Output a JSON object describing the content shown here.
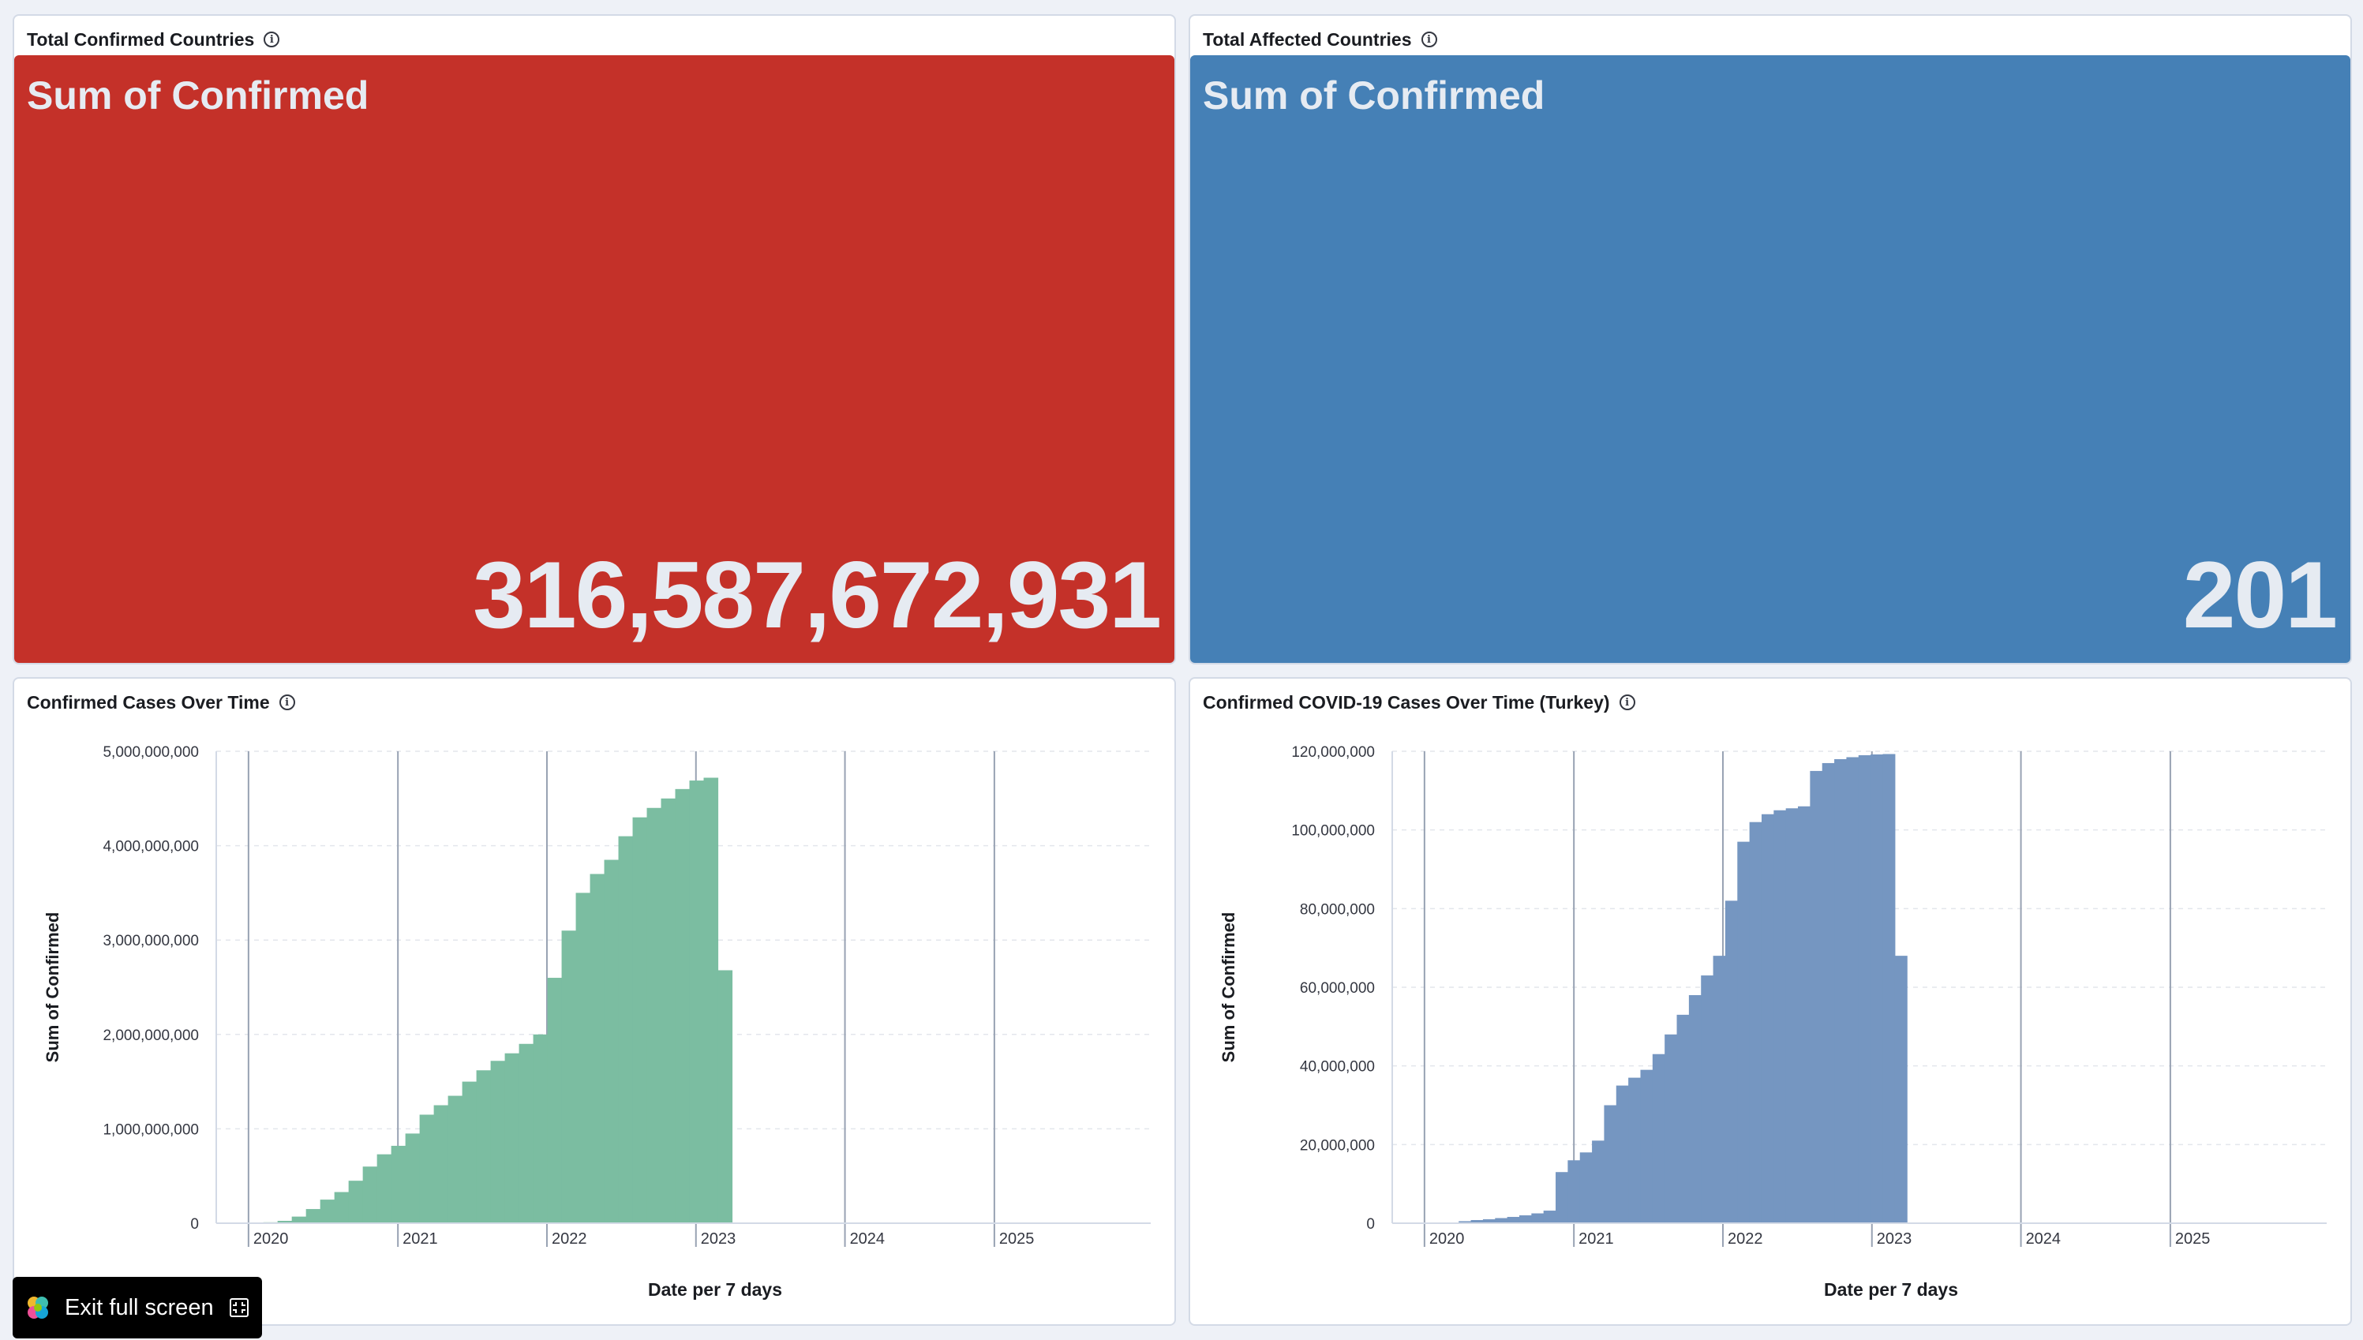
{
  "panels": {
    "p1": {
      "title": "Total Confirmed Countries",
      "label": "Sum of Confirmed",
      "value": "316,587,672,931",
      "color": "#c43129"
    },
    "p2": {
      "title": "Total Affected Countries",
      "label": "Sum of Confirmed",
      "value": "201",
      "color": "#4580b6"
    },
    "p3": {
      "title": "Confirmed Cases Over Time"
    },
    "p4": {
      "title": "Confirmed COVID-19 Cases Over Time (Turkey)"
    }
  },
  "exit_button": {
    "label": "Exit full screen"
  },
  "chart_data": [
    {
      "type": "bar",
      "title": "Confirmed Cases Over Time",
      "xlabel": "Date per 7 days",
      "ylabel": "Sum of Confirmed",
      "color": "#7bbda1",
      "x_ticks": [
        "2020",
        "2021",
        "2022",
        "2023",
        "2024",
        "2025"
      ],
      "y_ticks": [
        "0",
        "1,000,000,000",
        "2,000,000,000",
        "3,000,000,000",
        "4,000,000,000",
        "5,000,000,000"
      ],
      "ylim": [
        0,
        5000000000
      ],
      "xlim": [
        "2019-10-14",
        "2026-01-19"
      ],
      "series": [
        {
          "x_start": "2020-01-20",
          "x_end": "2023-03-13",
          "x_interval": "7 days",
          "values": [
            0,
            10000000,
            25000000,
            70000000,
            150000000,
            250000000,
            330000000,
            450000000,
            600000000,
            730000000,
            820000000,
            950000000,
            1150000000,
            1250000000,
            1350000000,
            1500000000,
            1620000000,
            1720000000,
            1800000000,
            1900000000,
            2000000000,
            2600000000,
            3100000000,
            3500000000,
            3700000000,
            3850000000,
            4100000000,
            4300000000,
            4400000000,
            4500000000,
            4600000000,
            4690000000,
            4720000000,
            2680000000
          ]
        }
      ]
    },
    {
      "type": "bar",
      "title": "Confirmed COVID-19 Cases Over Time (Turkey)",
      "xlabel": "Date per 7 days",
      "ylabel": "Sum of Confirmed",
      "color": "#7596c1",
      "x_ticks": [
        "2020",
        "2021",
        "2022",
        "2023",
        "2024",
        "2025"
      ],
      "y_ticks": [
        "0",
        "20,000,000",
        "40,000,000",
        "60,000,000",
        "80,000,000",
        "100,000,000",
        "120,000,000"
      ],
      "ylim": [
        0,
        120000000
      ],
      "xlim": [
        "2019-10-14",
        "2026-01-19"
      ],
      "series": [
        {
          "x_start": "2020-03-10",
          "x_end": "2023-03-13",
          "x_interval": "7 days",
          "values": [
            0,
            500000,
            800000,
            1000000,
            1300000,
            1600000,
            2000000,
            2500000,
            3200000,
            13000000,
            16000000,
            18000000,
            21000000,
            30000000,
            35000000,
            37000000,
            39000000,
            43000000,
            48000000,
            53000000,
            58000000,
            63000000,
            68000000,
            82000000,
            97000000,
            102000000,
            104000000,
            105000000,
            105500000,
            106000000,
            115000000,
            117000000,
            118000000,
            118500000,
            119000000,
            119200000,
            119300000,
            68000000
          ]
        }
      ]
    }
  ]
}
